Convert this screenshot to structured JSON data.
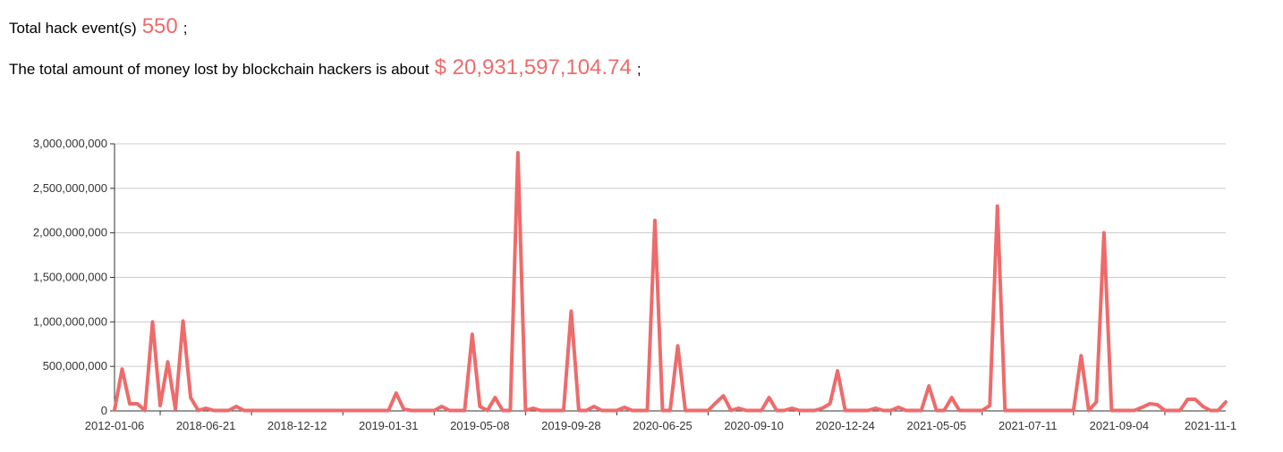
{
  "summary": {
    "events_label": "Total hack event(s)",
    "events": 550,
    "events_end": ";",
    "amount_label": "The total amount of money lost by blockchain hackers is about",
    "amount": "$ 20,931,597,104.74",
    "amount_end": ";"
  },
  "chart_data": {
    "type": "line",
    "categories": [
      "2012-01-06",
      null,
      null,
      null,
      null,
      null,
      null,
      null,
      null,
      null,
      null,
      null,
      "2018-06-21",
      null,
      null,
      null,
      null,
      null,
      null,
      null,
      null,
      null,
      null,
      null,
      "2018-12-12",
      null,
      null,
      null,
      null,
      null,
      null,
      null,
      null,
      null,
      null,
      null,
      "2019-01-31",
      null,
      null,
      null,
      null,
      null,
      null,
      null,
      null,
      null,
      null,
      null,
      "2019-05-08",
      null,
      null,
      null,
      null,
      null,
      null,
      null,
      null,
      null,
      null,
      null,
      "2019-09-28",
      null,
      null,
      null,
      null,
      null,
      null,
      null,
      null,
      null,
      null,
      null,
      "2020-06-25",
      null,
      null,
      null,
      null,
      null,
      null,
      null,
      null,
      null,
      null,
      null,
      "2020-09-10",
      null,
      null,
      null,
      null,
      null,
      null,
      null,
      null,
      null,
      null,
      null,
      "2020-12-24",
      null,
      null,
      null,
      null,
      null,
      null,
      null,
      null,
      null,
      null,
      null,
      "2021-05-05",
      null,
      null,
      null,
      null,
      null,
      null,
      null,
      null,
      null,
      null,
      null,
      "2021-07-11",
      null,
      null,
      null,
      null,
      null,
      null,
      null,
      null,
      null,
      null,
      null,
      "2021-09-04",
      null,
      null,
      null,
      null,
      null,
      null,
      null,
      null,
      null,
      null,
      null,
      "2021-11-1",
      null,
      null
    ],
    "series": [
      {
        "color": "#ee6b6b",
        "values": [
          10000000,
          470000000,
          80000000,
          80000000,
          5000000,
          1000000000,
          60000000,
          550000000,
          20000000,
          1010000000,
          150000000,
          5000000,
          30000000,
          5000000,
          5000000,
          5000000,
          50000000,
          5000000,
          5000000,
          5000000,
          5000000,
          5000000,
          5000000,
          5000000,
          5000000,
          5000000,
          5000000,
          5000000,
          5000000,
          5000000,
          5000000,
          5000000,
          5000000,
          5000000,
          5000000,
          5000000,
          5000000,
          200000000,
          20000000,
          5000000,
          5000000,
          5000000,
          5000000,
          50000000,
          5000000,
          5000000,
          5000000,
          860000000,
          50000000,
          5000000,
          150000000,
          5000000,
          5000000,
          2900000000,
          5000000,
          30000000,
          5000000,
          5000000,
          5000000,
          5000000,
          1120000000,
          5000000,
          5000000,
          50000000,
          5000000,
          5000000,
          5000000,
          40000000,
          5000000,
          5000000,
          5000000,
          2140000000,
          5000000,
          5000000,
          730000000,
          5000000,
          5000000,
          5000000,
          5000000,
          90000000,
          170000000,
          5000000,
          30000000,
          5000000,
          5000000,
          5000000,
          150000000,
          5000000,
          5000000,
          30000000,
          5000000,
          5000000,
          5000000,
          30000000,
          80000000,
          450000000,
          5000000,
          5000000,
          5000000,
          5000000,
          30000000,
          5000000,
          5000000,
          40000000,
          5000000,
          5000000,
          5000000,
          280000000,
          5000000,
          5000000,
          150000000,
          5000000,
          5000000,
          5000000,
          5000000,
          60000000,
          2300000000,
          5000000,
          5000000,
          5000000,
          5000000,
          5000000,
          5000000,
          5000000,
          5000000,
          5000000,
          5000000,
          620000000,
          5000000,
          100000000,
          2000000000,
          5000000,
          5000000,
          5000000,
          5000000,
          40000000,
          80000000,
          70000000,
          5000000,
          5000000,
          5000000,
          130000000,
          130000000,
          50000000,
          5000000,
          5000000,
          100000000
        ]
      }
    ],
    "ylim": [
      0,
      3000000000
    ],
    "yticks": [
      0,
      {
        "value": 500000000,
        "label": "500,000,000"
      },
      {
        "value": 1000000000,
        "label": "1,000,000,000"
      },
      {
        "value": 1500000000,
        "label": "1,500,000,000"
      },
      {
        "value": 2000000000,
        "label": "2,000,000,000"
      },
      {
        "value": 2500000000,
        "label": "2,500,000,000"
      },
      {
        "value": 3000000000,
        "label": "3,000,000,000"
      }
    ],
    "grid": true
  }
}
